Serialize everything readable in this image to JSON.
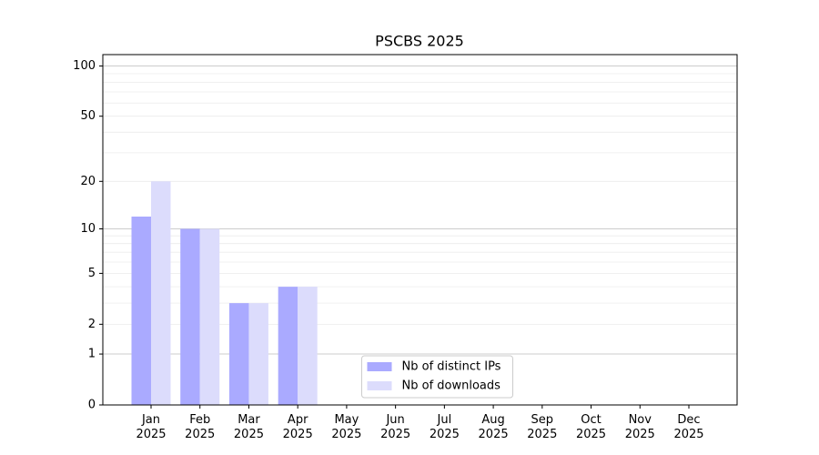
{
  "chart_data": {
    "type": "bar",
    "title": "PSCBS 2025",
    "categories": [
      "Jan\n2025",
      "Feb\n2025",
      "Mar\n2025",
      "Apr\n2025",
      "May\n2025",
      "Jun\n2025",
      "Jul\n2025",
      "Aug\n2025",
      "Sep\n2025",
      "Oct\n2025",
      "Nov\n2025",
      "Dec\n2025"
    ],
    "series": [
      {
        "name": "Nb of distinct IPs",
        "color": "#aaaaff",
        "values": [
          12,
          10,
          3,
          4,
          0,
          0,
          0,
          0,
          0,
          0,
          0,
          0
        ]
      },
      {
        "name": "Nb of downloads",
        "color": "#dcdcfc",
        "values": [
          20,
          10,
          3,
          4,
          0,
          0,
          0,
          0,
          0,
          0,
          0,
          0
        ]
      }
    ],
    "y_scale": "log1p",
    "ylim": [
      0,
      117
    ],
    "yticks": [
      0,
      1,
      2,
      5,
      10,
      20,
      50,
      100
    ],
    "major_grid": [
      1,
      10,
      100
    ],
    "minor_grid": [
      2,
      3,
      4,
      5,
      6,
      7,
      8,
      9,
      20,
      30,
      40,
      50,
      60,
      70,
      80,
      90
    ],
    "legend": "lower center"
  }
}
